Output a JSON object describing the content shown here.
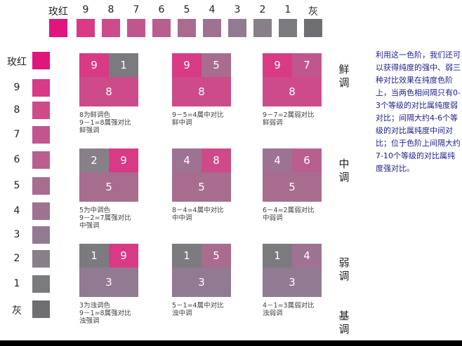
{
  "scale": {
    "labels": [
      "玫红",
      "9",
      "8",
      "7",
      "6",
      "5",
      "4",
      "3",
      "2",
      "1",
      "灰"
    ],
    "colors": [
      "#e0157e",
      "#d83a86",
      "#cd4b8b",
      "#c1568e",
      "#b85f90",
      "#a86c8e",
      "#9e7292",
      "#927a92",
      "#888088",
      "#7b7b7f",
      "#6f6f73"
    ]
  },
  "groups": [
    {
      "name": "鲜调",
      "panels": [
        {
          "a": "9",
          "b": "1",
          "base": "8",
          "caption": "8为鲜调色\n9－1=8属强对比\n鲜强调"
        },
        {
          "a": "9",
          "b": "5",
          "base": "8",
          "caption": "9－5=4属中对比\n鲜中调"
        },
        {
          "a": "9",
          "b": "7",
          "base": "8",
          "caption": "9－7=2属弱对比\n鲜弱调"
        }
      ]
    },
    {
      "name": "中调",
      "panels": [
        {
          "a": "2",
          "b": "9",
          "base": "5",
          "caption": "5为中调色\n9－2=7属强对比\n中强调"
        },
        {
          "a": "4",
          "b": "8",
          "base": "5",
          "caption": "8－4=4属中对比\n中中调"
        },
        {
          "a": "4",
          "b": "6",
          "base": "5",
          "caption": "6－4=2属弱对比\n中弱调"
        }
      ]
    },
    {
      "name": "弱调",
      "panels": [
        {
          "a": "1",
          "b": "9",
          "base": "3",
          "caption": "3为浊调色\n9－1=8属强对比\n浊强调"
        },
        {
          "a": "1",
          "b": "5",
          "base": "3",
          "caption": "5－1=4属中对比\n浊中调"
        },
        {
          "a": "1",
          "b": "4",
          "base": "3",
          "caption": "4－1=3属弱对比\n浊弱调"
        }
      ]
    }
  ],
  "bottom_label": "基调",
  "explanation": "利用这一色阶，我们还可以获得纯度的强中、弱三种对比效果在纯度色阶上，当两色相间隔只有0-3个等级的对比属纯度弱对比；间隔大约4-6个等级的对比属纯度中间对比；位于色阶上间隔大约7-10个等级的对比属纯度强对比。"
}
